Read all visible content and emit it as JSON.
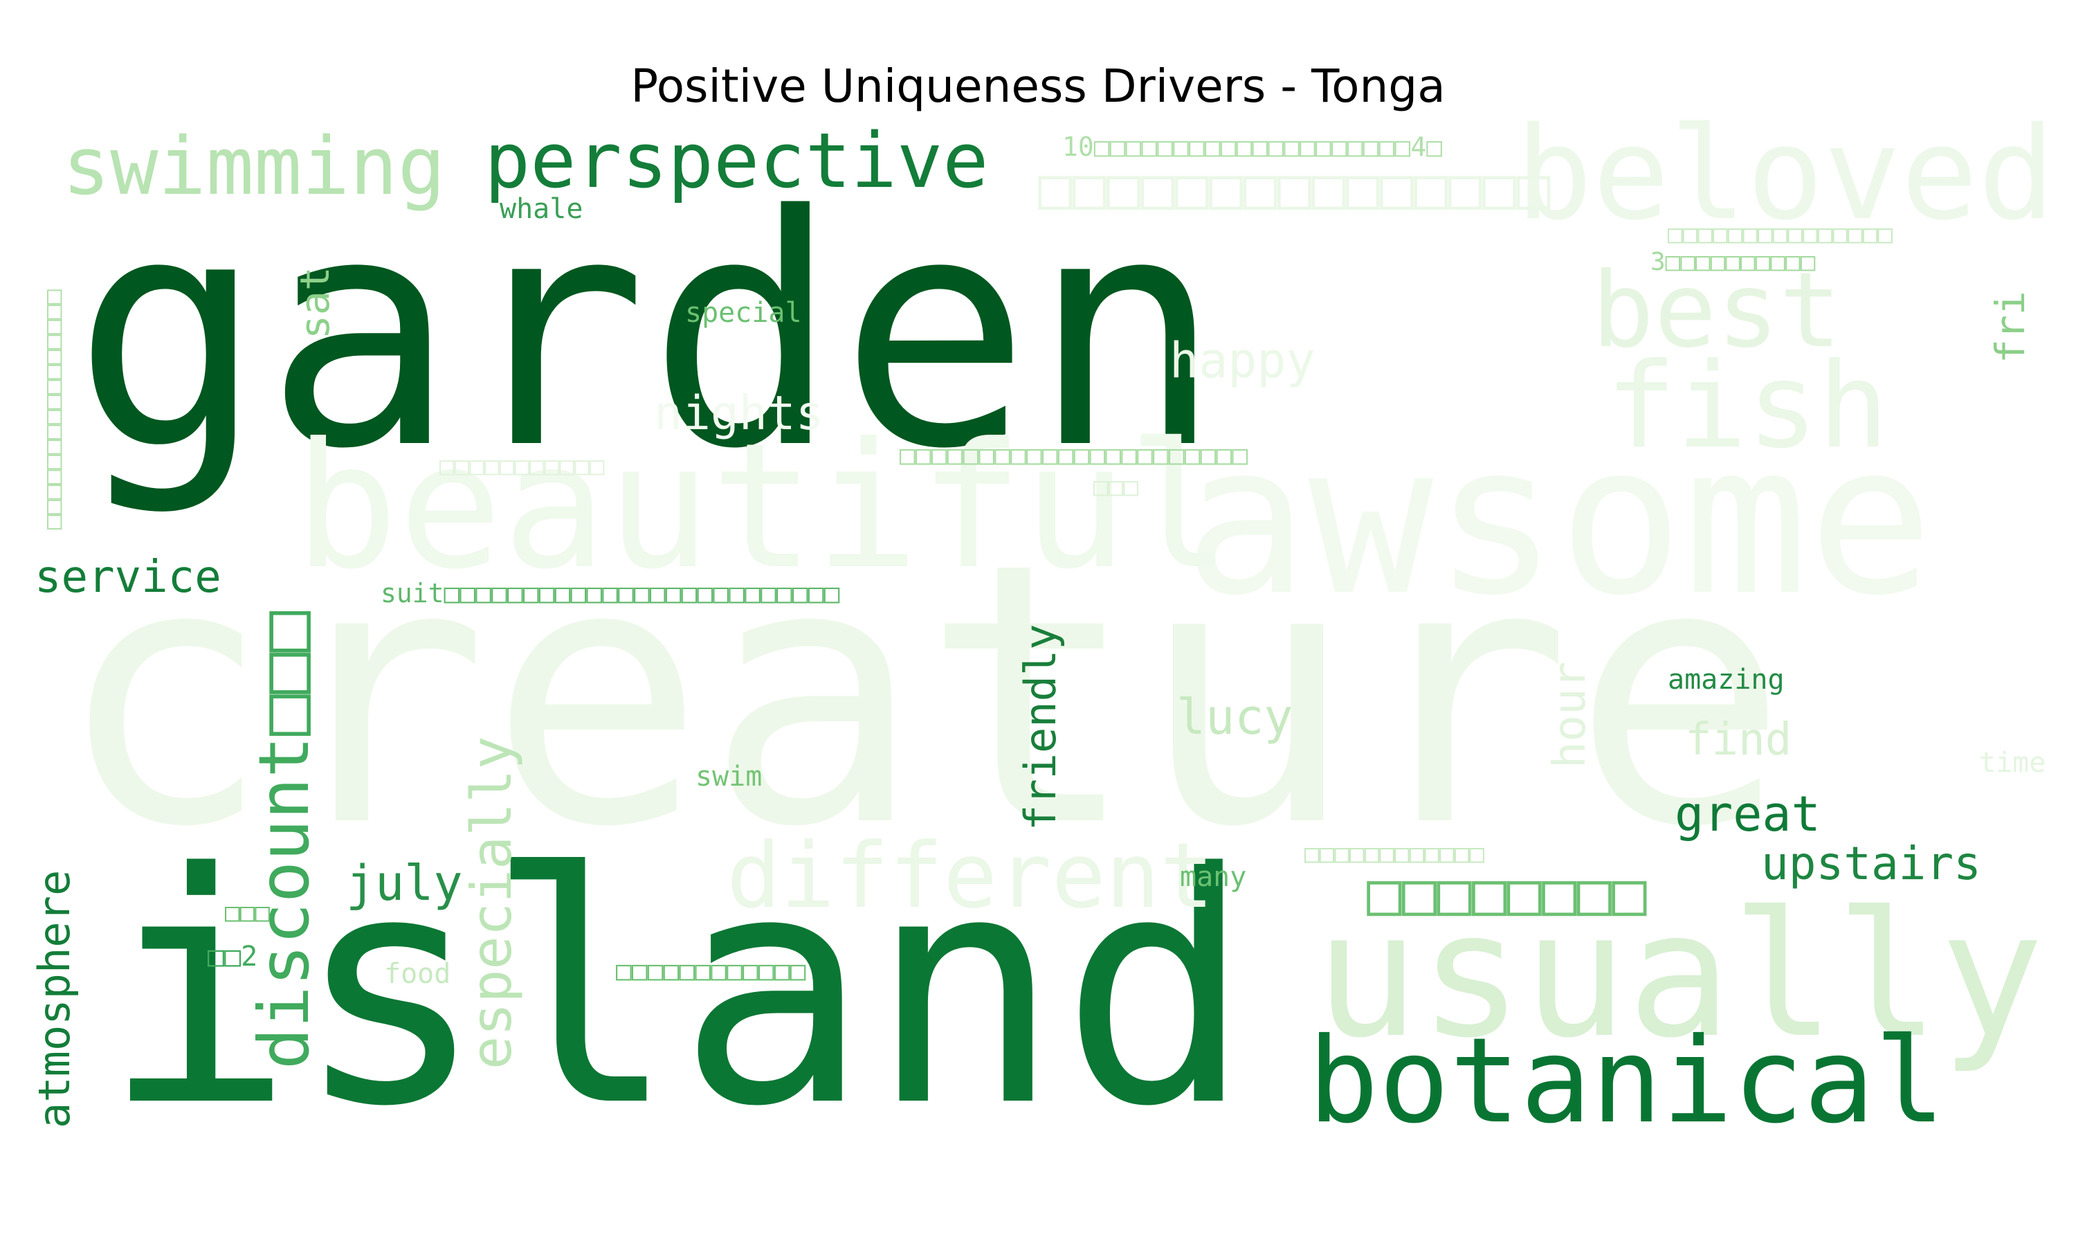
{
  "chart_data": {
    "type": "wordcloud",
    "title": "Positive Uniqueness Drivers - Tonga",
    "colormap": "Greens",
    "words": [
      {
        "text": "creature",
        "weight": 1.0,
        "color": "#eef8ea"
      },
      {
        "text": "garden",
        "weight": 0.95,
        "color": "#00571f"
      },
      {
        "text": "island",
        "weight": 0.9,
        "color": "#0b7734"
      },
      {
        "text": "awsome",
        "weight": 0.62,
        "color": "#f2faef"
      },
      {
        "text": "beautiful",
        "weight": 0.5,
        "color": "#eff9ec"
      },
      {
        "text": "usually",
        "weight": 0.5,
        "color": "#d9f0d3"
      },
      {
        "text": "beloved",
        "weight": 0.42,
        "color": "#edf8ea"
      },
      {
        "text": "botanical",
        "weight": 0.36,
        "color": "#097533"
      },
      {
        "text": "fish",
        "weight": 0.36,
        "color": "#ebf7e7"
      },
      {
        "text": "best",
        "weight": 0.33,
        "color": "#e6f5e1"
      },
      {
        "text": "different",
        "weight": 0.27,
        "color": "#ebf7e7"
      },
      {
        "text": "discount□□□",
        "weight": 0.25,
        "color": "#40aa5d"
      },
      {
        "text": "swimming",
        "weight": 0.23,
        "color": "#b8e3b2"
      },
      {
        "text": "perspective",
        "weight": 0.22,
        "color": "#137d39"
      },
      {
        "text": "especially",
        "weight": 0.18,
        "color": "#bde5b7"
      },
      {
        "text": "□□□□□□□□□□□□□□□",
        "weight": 0.12,
        "color": "#ebf7e7"
      },
      {
        "text": "□□□□□□□□",
        "weight": 0.11,
        "color": "#6bc072"
      },
      {
        "text": "atmosphere",
        "weight": 0.12,
        "color": "#137d39"
      },
      {
        "text": "friendly",
        "weight": 0.11,
        "color": "#197f3b"
      },
      {
        "text": "july",
        "weight": 0.1,
        "color": "#289049"
      },
      {
        "text": "upstairs",
        "weight": 0.1,
        "color": "#1d8641"
      },
      {
        "text": "service",
        "weight": 0.09,
        "color": "#137d39"
      },
      {
        "text": "great",
        "weight": 0.1,
        "color": "#0f7a37"
      },
      {
        "text": "nights",
        "weight": 0.09,
        "color": "#f2faf0"
      },
      {
        "text": "happy",
        "weight": 0.09,
        "color": "#ecf8e8"
      },
      {
        "text": "lucy",
        "weight": 0.09,
        "color": "#c7e9c0"
      },
      {
        "text": "find",
        "weight": 0.08,
        "color": "#d8f0d2"
      },
      {
        "text": "hour",
        "weight": 0.08,
        "color": "#e3f4de"
      },
      {
        "text": "sat",
        "weight": 0.07,
        "color": "#8dd08a"
      },
      {
        "text": "fri",
        "weight": 0.07,
        "color": "#8ccf89"
      },
      {
        "text": "10□□□□□□□□□□□□□□□□□□□□4□",
        "weight": 0.05,
        "color": "#b0dfaa"
      },
      {
        "text": "□□□□□□□□□□□□□□□□□□□□□□",
        "weight": 0.05,
        "color": "#a8dca2"
      },
      {
        "text": "suit□□□□□□□□□□□□□□□□□□□□□□□□□",
        "weight": 0.05,
        "color": "#5fb86b"
      },
      {
        "text": "3□□□□□□□□□□",
        "weight": 0.04,
        "color": "#a3da9d"
      },
      {
        "text": "□□□□□□□□□□□□□□□",
        "weight": 0.04,
        "color": "#c9eac2"
      },
      {
        "text": "□□□□□□□□□□□□",
        "weight": 0.04,
        "color": "#c7e9c0"
      },
      {
        "text": "□□□□□□□□□□□□",
        "weight": 0.04,
        "color": "#6bc072"
      },
      {
        "text": "□□□□□□□□□□□",
        "weight": 0.04,
        "color": "#e2f3dd"
      },
      {
        "text": "whale",
        "weight": 0.04,
        "color": "#3a9f56"
      },
      {
        "text": "special",
        "weight": 0.04,
        "color": "#6bc072"
      },
      {
        "text": "amazing",
        "weight": 0.04,
        "color": "#238b45"
      },
      {
        "text": "swim",
        "weight": 0.04,
        "color": "#74c476"
      },
      {
        "text": "many",
        "weight": 0.04,
        "color": "#6bc072"
      },
      {
        "text": "food",
        "weight": 0.04,
        "color": "#c7e9c0"
      },
      {
        "text": "time",
        "weight": 0.04,
        "color": "#e5f5e0"
      },
      {
        "text": "□□2",
        "weight": 0.04,
        "color": "#41ab5d"
      },
      {
        "text": "□□□",
        "weight": 0.04,
        "color": "#6bc072"
      },
      {
        "text": "□□□",
        "weight": 0.04,
        "color": "#ddf1d7"
      },
      {
        "text": "□□□□□□□□□□□□□□□□",
        "weight": 0.04,
        "color": "#b2e0ac"
      }
    ]
  }
}
